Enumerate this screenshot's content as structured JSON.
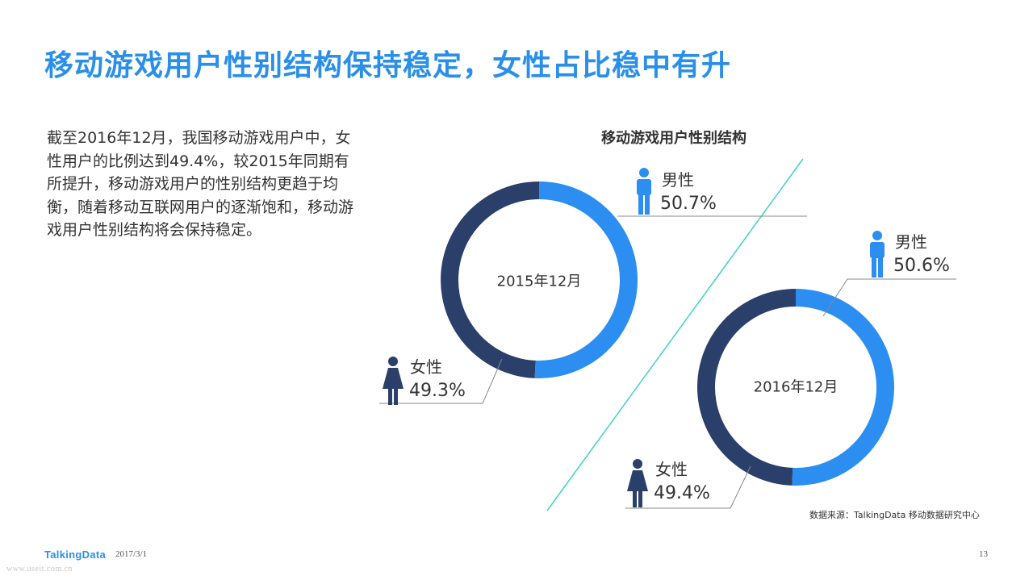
{
  "page": {
    "title": "移动游戏用户性别结构保持稳定，女性占比稳中有升",
    "description": "截至2016年12月，我国移动游戏用户中，女性用户的比例达到49.4%，较2015年同期有所提升，移动游戏用户的性别结构更趋于均衡，随着移动互联网用户的逐渐饱和，移动游戏用户性别结构将会保持稳定。",
    "source": "数据来源：TalkingData 移动数据研究中心",
    "logo": "TalkingData",
    "date": "2017/3/1",
    "page_number": "13",
    "watermark": "www.useit.com.cn"
  },
  "chart_data": {
    "type": "pie",
    "title": "移动游戏用户性别结构",
    "colors": {
      "male": "#2b8ef0",
      "female": "#2b3f6b",
      "divider": "#3fd2c5",
      "leader": "#888888"
    },
    "charts": [
      {
        "center_label": "2015年12月",
        "slices": [
          {
            "key": "male",
            "label": "男性",
            "value": 50.7,
            "value_text": "50.7%"
          },
          {
            "key": "female",
            "label": "女性",
            "value": 49.3,
            "value_text": "49.3%"
          }
        ]
      },
      {
        "center_label": "2016年12月",
        "slices": [
          {
            "key": "male",
            "label": "男性",
            "value": 50.6,
            "value_text": "50.6%"
          },
          {
            "key": "female",
            "label": "女性",
            "value": 49.4,
            "value_text": "49.4%"
          }
        ]
      }
    ]
  }
}
